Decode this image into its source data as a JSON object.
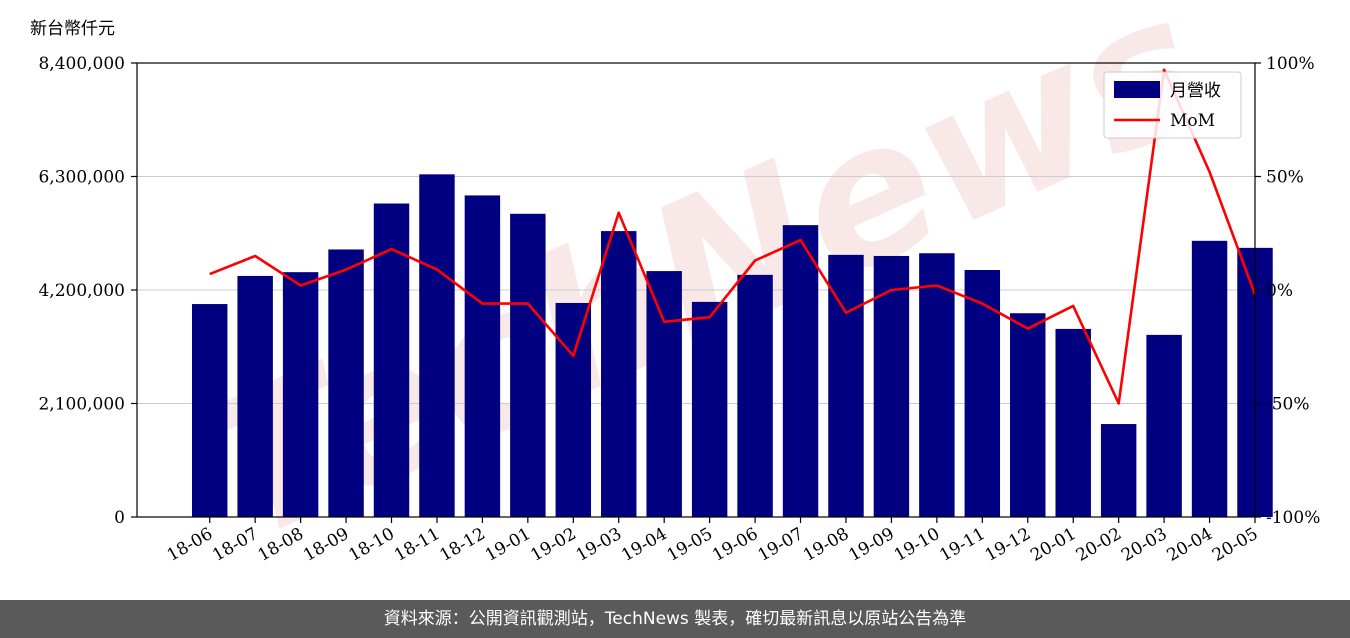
{
  "unit_label": "新台幣仟元",
  "watermark_text": "TechNews",
  "footer_text": "資料來源：公開資訊觀測站，TechNews 製表，確切最新訊息以原站公告為準",
  "colors": {
    "bar": "#000080",
    "line": "#ff0000",
    "grid": "#cccccc",
    "footer_bg": "#5a5a5a"
  },
  "chart_data": {
    "type": "bar",
    "categories": [
      "18-06",
      "18-07",
      "18-08",
      "18-09",
      "18-10",
      "18-11",
      "18-12",
      "19-01",
      "19-02",
      "19-03",
      "19-04",
      "19-05",
      "19-06",
      "19-07",
      "19-08",
      "19-09",
      "19-10",
      "19-11",
      "19-12",
      "20-01",
      "20-02",
      "20-03",
      "20-04",
      "20-05"
    ],
    "series": [
      {
        "name": "月營收",
        "type": "bar",
        "axis": "left",
        "values": [
          3940000,
          4460000,
          4530000,
          4950000,
          5800000,
          6340000,
          5950000,
          5610000,
          3960000,
          5290000,
          4550000,
          3980000,
          4480000,
          5400000,
          4850000,
          4830000,
          4880000,
          4570000,
          3770000,
          3480000,
          1720000,
          3370000,
          5110000,
          4980000
        ]
      },
      {
        "name": "MoM",
        "type": "line",
        "axis": "right",
        "values": [
          7,
          15,
          2,
          9,
          18,
          9,
          -6,
          -6,
          -29,
          34,
          -14,
          -12,
          13,
          22,
          -10,
          0,
          2,
          -6,
          -17,
          -7,
          -50,
          97,
          52,
          -2
        ]
      }
    ],
    "y_left": {
      "ylim": [
        0,
        8400000
      ],
      "ticks": [
        0,
        2100000,
        4200000,
        6300000,
        8400000
      ],
      "tick_labels": [
        "0",
        "2,100,000",
        "4,200,000",
        "6,300,000",
        "8,400,000"
      ]
    },
    "y_right": {
      "ylim": [
        -100,
        100
      ],
      "ticks": [
        -100,
        -50,
        0,
        50,
        100
      ],
      "tick_labels": [
        "-100%",
        "-50%",
        "0%",
        "50%",
        "100%"
      ]
    },
    "grid": true,
    "legend_position": "top-right"
  }
}
